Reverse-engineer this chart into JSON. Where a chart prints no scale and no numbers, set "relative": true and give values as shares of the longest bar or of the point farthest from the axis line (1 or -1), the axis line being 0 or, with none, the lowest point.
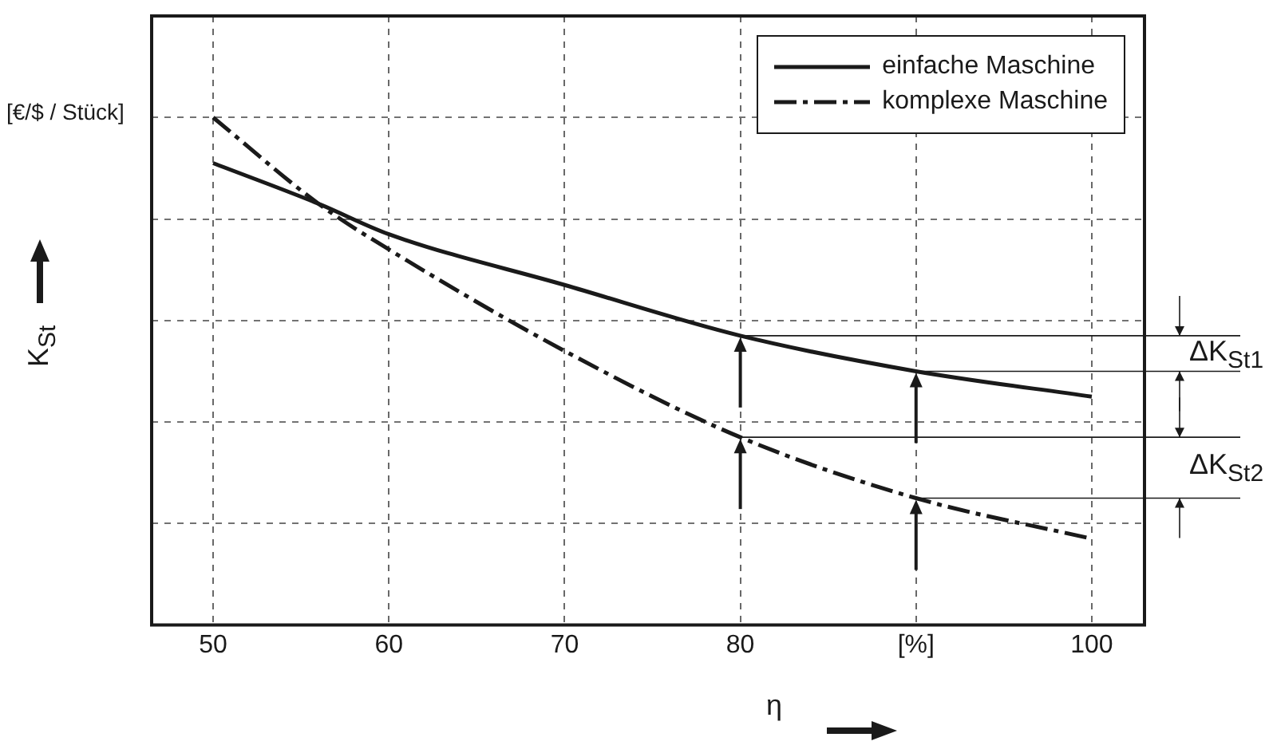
{
  "chart_data": {
    "type": "line",
    "relative": true,
    "xlabel": "η",
    "ylabel": "K$_{St}$",
    "x": [
      50,
      56,
      60,
      70,
      80,
      90,
      100
    ],
    "xlim": [
      46.5,
      103
    ],
    "xticks": [
      50,
      60,
      70,
      80,
      {
        "value": 90,
        "label": "[%]"
      },
      100
    ],
    "series": [
      {
        "name": "einfache Maschine",
        "color": "#1a1a1a",
        "line_style": "solid",
        "values": [
          0.91,
          0.83,
          0.77,
          0.67,
          0.57,
          0.5,
          0.45
        ]
      },
      {
        "name": "komplexe Maschine",
        "color": "#1a1a1a",
        "line_style": "dashed",
        "values": [
          1,
          0.83,
          0.74,
          0.54,
          0.37,
          0.25,
          0.17
        ]
      }
    ],
    "annotations": [
      "[€/$ / Stück]",
      "ΔK$_{St1}$",
      "ΔK$_{St2}$"
    ],
    "grid": true,
    "legend": "top right",
    "marker": "none"
  }
}
